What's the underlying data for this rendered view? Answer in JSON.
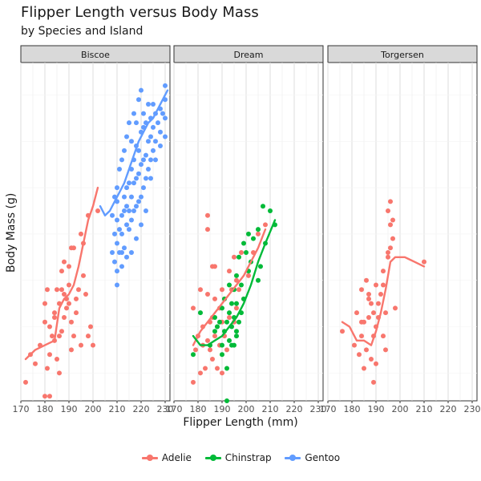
{
  "title": "Flipper Length versus Body Mass",
  "subtitle": "by Species and Island",
  "chart_data": {
    "type": "scatter",
    "title": "Flipper Length versus Body Mass",
    "subtitle": "by Species and Island",
    "xlabel": "Flipper Length (mm)",
    "ylabel": "Body Mass (g)",
    "xlim": [
      170,
      232
    ],
    "ylim": [
      2700,
      6350
    ],
    "xticks": [
      170,
      180,
      190,
      200,
      210,
      220,
      230
    ],
    "yticks_shown": false,
    "grid": true,
    "facets": [
      "Biscoe",
      "Dream",
      "Torgersen"
    ],
    "legend_position": "bottom",
    "species": [
      {
        "name": "Adelie",
        "color": "#F8766D"
      },
      {
        "name": "Chinstrap",
        "color": "#00BA38"
      },
      {
        "name": "Gentoo",
        "color": "#619CFF"
      }
    ],
    "panels": [
      {
        "facet": "Biscoe",
        "series": [
          {
            "species": "Adelie",
            "x": [
              172,
              174,
              176,
              178,
              180,
              180,
              180,
              181,
              181,
              182,
              182,
              182,
              183,
              184,
              184,
              184,
              185,
              185,
              186,
              186,
              186,
              187,
              187,
              187,
              188,
              188,
              188,
              189,
              189,
              190,
              190,
              190,
              191,
              191,
              191,
              192,
              192,
              193,
              193,
              194,
              195,
              195,
              196,
              196,
              197,
              198,
              198,
              199,
              200,
              202
            ],
            "y": [
              2900,
              3200,
              3100,
              3300,
              3750,
              3550,
              2750,
              3900,
              3050,
              2750,
              3200,
              3500,
              3400,
              3350,
              3600,
              3650,
              3150,
              3900,
              3000,
              3400,
              3750,
              3900,
              4100,
              3450,
              3600,
              3850,
              4200,
              3700,
              3800,
              3950,
              4150,
              3750,
              3550,
              3250,
              4350,
              3400,
              4350,
              3650,
              3800,
              3900,
              3300,
              4500,
              4050,
              4400,
              3850,
              3400,
              4700,
              3500,
              3300,
              4750
            ]
          },
          {
            "species": "Gentoo",
            "x": [
              208,
              208,
              209,
              209,
              209,
              210,
              210,
              210,
              210,
              210,
              211,
              211,
              211,
              212,
              212,
              212,
              212,
              213,
              213,
              213,
              213,
              214,
              214,
              214,
              214,
              215,
              215,
              215,
              215,
              216,
              216,
              216,
              216,
              217,
              217,
              217,
              217,
              218,
              218,
              218,
              218,
              219,
              219,
              219,
              219,
              220,
              220,
              220,
              220,
              221,
              221,
              221,
              221,
              222,
              222,
              222,
              223,
              223,
              223,
              224,
              224,
              224,
              225,
              225,
              225,
              226,
              226,
              227,
              228,
              228,
              229,
              230,
              230,
              230,
              230,
              210,
              212,
              214,
              216,
              218,
              220,
              222,
              224,
              226,
              228
            ],
            "y": [
              4300,
              4700,
              4200,
              4500,
              4900,
              3950,
              4400,
              4650,
              4850,
              5000,
              4300,
              4550,
              5200,
              4300,
              4500,
              4700,
              5300,
              4350,
              4750,
              4900,
              5400,
              4600,
              4800,
              5000,
              5550,
              4550,
              4750,
              5050,
              5700,
              4650,
              4900,
              5200,
              5500,
              4750,
              5050,
              5300,
              5800,
              4800,
              5100,
              5450,
              5700,
              4850,
              5150,
              5400,
              5950,
              4900,
              5250,
              5600,
              6050,
              5000,
              5300,
              5650,
              5800,
              5100,
              5350,
              5700,
              5200,
              5500,
              5900,
              5300,
              5550,
              5750,
              5400,
              5650,
              5900,
              5500,
              5800,
              5700,
              5600,
              5850,
              5800,
              5550,
              5750,
              5950,
              6100,
              4100,
              4150,
              4250,
              4300,
              4450,
              4600,
              4750,
              5100,
              5300,
              5450
            ]
          }
        ],
        "trends": [
          {
            "species": "Adelie",
            "x": [
              172,
              176,
              180,
              184,
              186,
              188,
              190,
              192,
              194,
              196,
              198,
              200,
              202
            ],
            "y": [
              3150,
              3250,
              3300,
              3350,
              3700,
              3800,
              3850,
              3950,
              4150,
              4400,
              4650,
              4800,
              5000
            ]
          },
          {
            "species": "Gentoo",
            "x": [
              203,
              205,
              207,
              209,
              211,
              213,
              215,
              217,
              219,
              221,
              223,
              225,
              227,
              229,
              231
            ],
            "y": [
              4800,
              4700,
              4750,
              4850,
              4950,
              5050,
              5200,
              5350,
              5500,
              5600,
              5700,
              5750,
              5850,
              5950,
              6050
            ]
          }
        ]
      },
      {
        "facet": "Dream",
        "series": [
          {
            "species": "Adelie",
            "x": [
              178,
              178,
              179,
              180,
              181,
              181,
              182,
              182,
              183,
              184,
              184,
              184,
              185,
              185,
              186,
              186,
              187,
              187,
              187,
              188,
              188,
              189,
              189,
              190,
              190,
              190,
              191,
              191,
              192,
              193,
              193,
              194,
              195,
              195,
              196,
              196,
              197,
              198,
              199,
              201,
              203,
              205,
              208,
              184,
              186
            ],
            "y": [
              2900,
              3700,
              3250,
              3400,
              3000,
              3900,
              3300,
              3500,
              3050,
              3350,
              3850,
              4700,
              3250,
              3550,
              3150,
              3600,
              3400,
              3800,
              4150,
              3050,
              3500,
              3300,
              3700,
              3000,
              3550,
              3900,
              3400,
              3800,
              3250,
              3600,
              4100,
              3900,
              3550,
              4250,
              3700,
              4000,
              3900,
              4300,
              3800,
              4050,
              4300,
              4500,
              4600,
              4550,
              4150
            ]
          },
          {
            "species": "Chinstrap",
            "x": [
              178,
              181,
              185,
              187,
              187,
              188,
              189,
              190,
              190,
              191,
              191,
              192,
              192,
              193,
              193,
              193,
              194,
              194,
              195,
              195,
              195,
              196,
              196,
              196,
              197,
              197,
              198,
              198,
              199,
              199,
              200,
              201,
              201,
              202,
              203,
              205,
              205,
              206,
              207,
              208,
              210,
              212,
              190,
              192,
              194,
              196
            ],
            "y": [
              3200,
              3650,
              3300,
              3450,
              3600,
              3500,
              3550,
              3300,
              3700,
              3450,
              3800,
              3550,
              2700,
              3350,
              3650,
              3950,
              3500,
              3750,
              3300,
              3600,
              3900,
              3450,
              3750,
              4050,
              3550,
              4250,
              3650,
              3950,
              3800,
              4400,
              4300,
              4100,
              4500,
              4200,
              4450,
              4000,
              4550,
              4150,
              4800,
              4400,
              4750,
              4600,
              3200,
              3050,
              3300,
              3400
            ]
          }
        ],
        "trends": [
          {
            "species": "Adelie",
            "x": [
              178,
              181,
              184,
              187,
              190,
              193,
              196,
              199,
              202,
              205,
              208
            ],
            "y": [
              3300,
              3450,
              3550,
              3650,
              3750,
              3850,
              3950,
              4050,
              4200,
              4350,
              4550
            ]
          },
          {
            "species": "Chinstrap",
            "x": [
              178,
              181,
              184,
              187,
              190,
              193,
              196,
              199,
              202,
              205,
              208,
              212
            ],
            "y": [
              3400,
              3300,
              3300,
              3350,
              3400,
              3500,
              3600,
              3750,
              3950,
              4200,
              4400,
              4650
            ]
          }
        ]
      },
      {
        "facet": "Torgersen",
        "series": [
          {
            "species": "Adelie",
            "x": [
              176,
              181,
              182,
              183,
              184,
              184,
              185,
              185,
              186,
              186,
              187,
              187,
              188,
              188,
              189,
              189,
              189,
              190,
              190,
              190,
              191,
              191,
              192,
              193,
              193,
              194,
              194,
              195,
              195,
              196,
              196,
              196,
              197,
              198,
              210,
              195,
              193,
              187,
              184,
              197
            ],
            "y": [
              3450,
              3300,
              3650,
              3200,
              3400,
              3900,
              3550,
              3050,
              3250,
              4000,
              3600,
              3800,
              3150,
              3750,
              2900,
              3400,
              3650,
              3500,
              3100,
              3950,
              3600,
              3750,
              3850,
              3400,
              4100,
              3650,
              3250,
              4250,
              4750,
              4850,
              4600,
              4350,
              4450,
              3700,
              4200,
              4300,
              3950,
              3850,
              3550,
              4650
            ]
          }
        ],
        "trends": [
          {
            "species": "Adelie",
            "x": [
              176,
              179,
              182,
              185,
              188,
              190,
              192,
              194,
              196,
              198,
              202,
              206,
              210
            ],
            "y": [
              3550,
              3500,
              3350,
              3350,
              3300,
              3450,
              3650,
              3900,
              4200,
              4250,
              4250,
              4200,
              4150
            ]
          }
        ]
      }
    ]
  }
}
